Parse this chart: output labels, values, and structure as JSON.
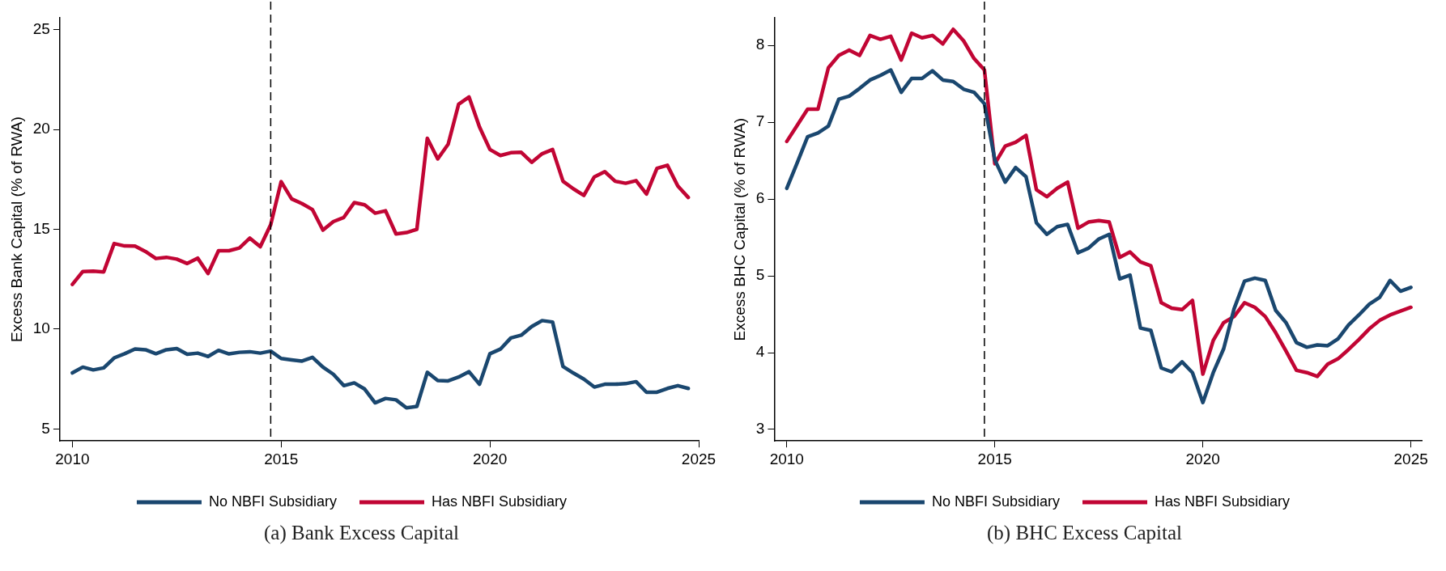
{
  "chart_data": [
    {
      "type": "line",
      "title": "(a) Bank Excess Capital",
      "ylabel": "Excess Bank Capital (% of RWA)",
      "x": [
        2010,
        2010.25,
        2010.5,
        2010.75,
        2011,
        2011.25,
        2011.5,
        2011.75,
        2012,
        2012.25,
        2012.5,
        2012.75,
        2013,
        2013.25,
        2013.5,
        2013.75,
        2014,
        2014.25,
        2014.5,
        2014.75,
        2015,
        2015.25,
        2015.5,
        2015.75,
        2016,
        2016.25,
        2016.5,
        2016.75,
        2017,
        2017.25,
        2017.5,
        2017.75,
        2018,
        2018.25,
        2018.5,
        2018.75,
        2019,
        2019.25,
        2019.5,
        2019.75,
        2020,
        2020.25,
        2020.5,
        2020.75,
        2021,
        2021.25,
        2021.5,
        2021.75,
        2022,
        2022.25,
        2022.5,
        2022.75,
        2023,
        2023.25,
        2023.5,
        2023.75,
        2024,
        2024.25,
        2024.5,
        2024.75
      ],
      "series": [
        {
          "name": "No NBFI Subsidiary",
          "color": "#1a476f",
          "values": [
            7.81,
            8.1,
            7.96,
            8.06,
            8.56,
            8.77,
            9.01,
            8.97,
            8.77,
            8.97,
            9.03,
            8.74,
            8.8,
            8.63,
            8.94,
            8.76,
            8.84,
            8.87,
            8.8,
            8.9,
            8.53,
            8.46,
            8.4,
            8.59,
            8.1,
            7.74,
            7.17,
            7.31,
            7.0,
            6.31,
            6.53,
            6.46,
            6.06,
            6.13,
            7.84,
            7.43,
            7.41,
            7.6,
            7.87,
            7.24,
            8.77,
            9.0,
            9.56,
            9.7,
            10.13,
            10.43,
            10.36,
            8.13,
            7.8,
            7.5,
            7.1,
            7.24,
            7.24,
            7.27,
            7.37,
            6.84,
            6.84,
            7.03,
            7.17,
            7.03
          ]
        },
        {
          "name": "Has NBFI Subsidiary",
          "color": "#c10534",
          "values": [
            12.24,
            12.89,
            12.91,
            12.87,
            14.29,
            14.17,
            14.16,
            13.89,
            13.54,
            13.6,
            13.51,
            13.29,
            13.56,
            12.79,
            13.93,
            13.93,
            14.07,
            14.56,
            14.13,
            15.24,
            17.39,
            16.53,
            16.29,
            15.99,
            14.96,
            15.39,
            15.6,
            16.34,
            16.23,
            15.81,
            15.93,
            14.77,
            14.84,
            15.0,
            19.56,
            18.53,
            19.27,
            21.27,
            21.63,
            20.13,
            19.0,
            18.7,
            18.84,
            18.86,
            18.36,
            18.79,
            19.0,
            17.41,
            17.03,
            16.7,
            17.63,
            17.89,
            17.41,
            17.31,
            17.44,
            16.77,
            18.06,
            18.21,
            17.17,
            16.6
          ]
        }
      ],
      "xlim": [
        2009.7,
        2025
      ],
      "xticks": [
        2010,
        2015,
        2020,
        2025
      ],
      "ylim": [
        4.4,
        25.6
      ],
      "yticks": [
        5,
        10,
        15,
        20,
        25
      ],
      "ref_lines": [
        {
          "axis": "x",
          "value": 2014.75,
          "color": "#000000",
          "line_style": "dashed"
        }
      ],
      "grid": false,
      "legend": "bottom",
      "marker": "none",
      "line_style": "solid"
    },
    {
      "type": "line",
      "title": "(b) BHC Excess Capital",
      "ylabel": "Excess BHC Capital (% of RWA)",
      "x": [
        2010,
        2010.25,
        2010.5,
        2010.75,
        2011,
        2011.25,
        2011.5,
        2011.75,
        2012,
        2012.25,
        2012.5,
        2012.75,
        2013,
        2013.25,
        2013.5,
        2013.75,
        2014,
        2014.25,
        2014.5,
        2014.75,
        2015,
        2015.25,
        2015.5,
        2015.75,
        2016,
        2016.25,
        2016.5,
        2016.75,
        2017,
        2017.25,
        2017.5,
        2017.75,
        2018,
        2018.25,
        2018.5,
        2018.75,
        2019,
        2019.25,
        2019.5,
        2019.75,
        2020,
        2020.25,
        2020.5,
        2020.75,
        2021,
        2021.25,
        2021.5,
        2021.75,
        2022,
        2022.25,
        2022.5,
        2022.75,
        2023,
        2023.25,
        2023.5,
        2023.75,
        2024,
        2024.25,
        2024.5,
        2024.75,
        2025
      ],
      "series": [
        {
          "name": "No NBFI Subsidiary",
          "color": "#1a476f",
          "values": [
            6.14,
            6.47,
            6.81,
            6.86,
            6.95,
            7.3,
            7.34,
            7.44,
            7.55,
            7.61,
            7.68,
            7.39,
            7.57,
            7.57,
            7.67,
            7.55,
            7.53,
            7.43,
            7.39,
            7.24,
            6.51,
            6.22,
            6.41,
            6.29,
            5.69,
            5.54,
            5.64,
            5.67,
            5.3,
            5.36,
            5.48,
            5.54,
            4.96,
            5.01,
            4.32,
            4.29,
            3.8,
            3.75,
            3.88,
            3.74,
            3.35,
            3.74,
            4.05,
            4.57,
            4.93,
            4.97,
            4.94,
            4.55,
            4.39,
            4.13,
            4.07,
            4.1,
            4.09,
            4.18,
            4.36,
            4.49,
            4.63,
            4.72,
            4.94,
            4.8,
            4.85
          ]
        },
        {
          "name": "Has NBFI Subsidiary",
          "color": "#c10534",
          "values": [
            6.75,
            6.96,
            7.17,
            7.17,
            7.71,
            7.87,
            7.94,
            7.87,
            8.13,
            8.08,
            8.12,
            7.81,
            8.16,
            8.1,
            8.13,
            8.02,
            8.21,
            8.06,
            7.83,
            7.68,
            6.46,
            6.69,
            6.74,
            6.83,
            6.12,
            6.03,
            6.14,
            6.22,
            5.62,
            5.7,
            5.72,
            5.7,
            5.24,
            5.31,
            5.18,
            5.13,
            4.65,
            4.58,
            4.56,
            4.68,
            3.72,
            4.16,
            4.39,
            4.47,
            4.65,
            4.59,
            4.47,
            4.26,
            4.02,
            3.77,
            3.74,
            3.69,
            3.85,
            3.92,
            4.04,
            4.17,
            4.31,
            4.42,
            4.49,
            4.54,
            4.59
          ]
        }
      ],
      "xlim": [
        2009.7,
        2025.26
      ],
      "xticks": [
        2010,
        2015,
        2020,
        2025
      ],
      "ylim": [
        2.85,
        8.36
      ],
      "yticks": [
        3,
        4,
        5,
        6,
        7,
        8
      ],
      "ref_lines": [
        {
          "axis": "x",
          "value": 2014.75,
          "color": "#000000",
          "line_style": "dashed"
        }
      ],
      "grid": false,
      "legend": "bottom",
      "marker": "none",
      "line_style": "solid"
    }
  ]
}
